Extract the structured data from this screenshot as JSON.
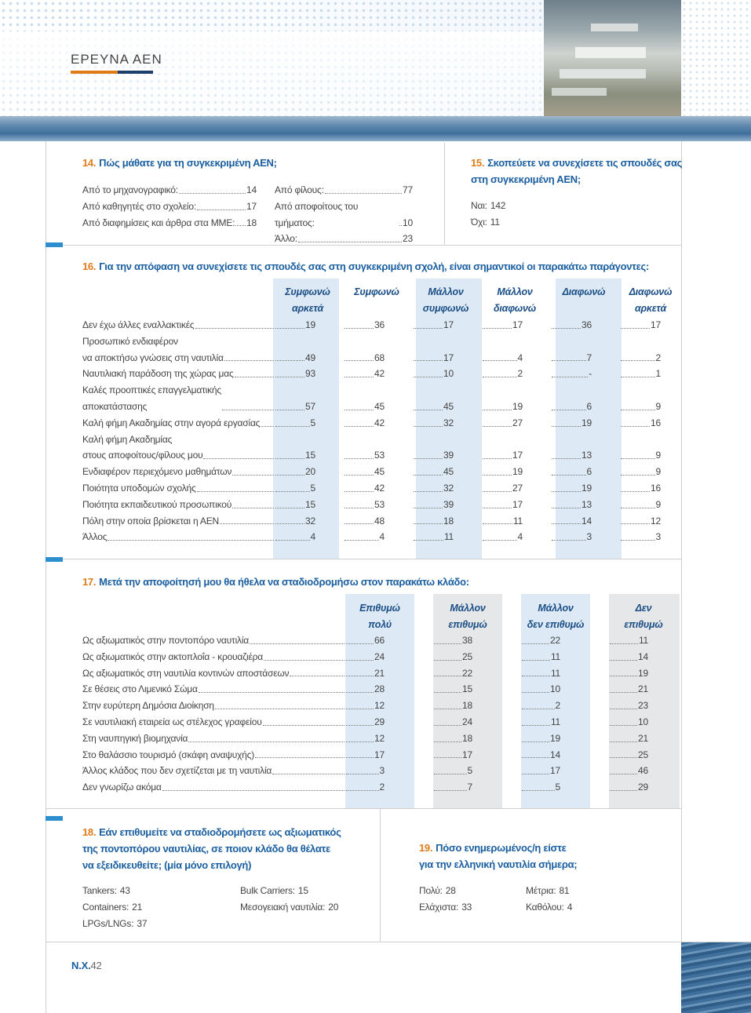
{
  "header": {
    "section": "ΕΡΕΥΝΑ ΑΕΝ"
  },
  "q14": {
    "number": "14.",
    "title": "Πώς μάθατε για τη συγκεκριμένη ΑΕΝ;",
    "columns": [
      [
        {
          "label": "Από το μηχανογραφικό:",
          "value": 14
        },
        {
          "label": "Από καθηγητές στο σχολείο:",
          "value": 17
        },
        {
          "label": "Από διαφημίσεις και άρθρα στα ΜΜΕ:",
          "value": 18
        }
      ],
      [
        {
          "label": "Από φίλους:",
          "value": 77
        },
        {
          "label": "Από αποφοίτους του τμήματος:",
          "value": 10
        },
        {
          "label": "Άλλο:",
          "value": 23
        }
      ]
    ]
  },
  "q15": {
    "number": "15.",
    "title": "Σκοπεύετε να συνεχίσετε τις σπουδές σας\nστη συγκεκριμένη ΑΕΝ;",
    "items": [
      {
        "label": "Ναι:",
        "value": 142
      },
      {
        "label": "Όχι:",
        "value": 11
      }
    ]
  },
  "q16": {
    "number": "16.",
    "title": "Για την  απόφαση να συνεχίσετε τις σπουδές σας στη συγκεκριμένη σχολή, είναι σημαντικοί οι παρακάτω παράγοντες:",
    "columns": [
      "Συμφωνώ\nαρκετά",
      "Συμφωνώ",
      "Μάλλον\nσυμφωνώ",
      "Μάλλον\nδιαφωνώ",
      "Διαφωνώ",
      "Διαφωνώ\nαρκετά"
    ],
    "rows": [
      {
        "label": "Δεν έχω άλλες εναλλακτικές",
        "values": [
          19,
          36,
          17,
          17,
          36,
          17
        ]
      },
      {
        "label": "Προσωπικό ενδιαφέρον\nνα αποκτήσω γνώσεις στη ναυτιλία",
        "values": [
          49,
          68,
          17,
          4,
          7,
          2
        ]
      },
      {
        "label": "Ναυτιλιακή παράδοση της χώρας μας",
        "values": [
          93,
          42,
          10,
          2,
          "-",
          1
        ]
      },
      {
        "label": "Καλές προοπτικές επαγγελματικής\nαποκατάστασης",
        "values": [
          57,
          45,
          45,
          19,
          6,
          9
        ]
      },
      {
        "label": "Καλή φήμη Ακαδημίας στην αγορά εργασίας",
        "values": [
          5,
          42,
          32,
          27,
          19,
          16
        ]
      },
      {
        "label": "Καλή φήμη Ακαδημίας\nστους αποφοίτους/φίλους μου",
        "values": [
          15,
          53,
          39,
          17,
          13,
          9
        ]
      },
      {
        "label": "Ενδιαφέρον περιεχόμενο μαθημάτων",
        "values": [
          20,
          45,
          45,
          19,
          6,
          9
        ]
      },
      {
        "label": "Ποιότητα υποδομών σχολής",
        "values": [
          5,
          42,
          32,
          27,
          19,
          16
        ]
      },
      {
        "label": "Ποιότητα εκπαιδευτικού προσωπικού",
        "values": [
          15,
          53,
          39,
          17,
          13,
          9
        ]
      },
      {
        "label": "Πόλη στην οποία βρίσκεται η ΑΕΝ",
        "values": [
          32,
          48,
          18,
          11,
          14,
          12
        ]
      },
      {
        "label": "Άλλος",
        "values": [
          4,
          4,
          11,
          4,
          3,
          3
        ]
      }
    ]
  },
  "q17": {
    "number": "17.",
    "title": "Μετά την αποφοίτησή μου θα ήθελα να σταδιοδρομήσω στον παρακάτω κλάδο:",
    "columns": [
      "Επιθυμώ\nπολύ",
      "Μάλλον\nεπιθυμώ",
      "Μάλλον\nδεν επιθυμώ",
      "Δεν\nεπιθυμώ"
    ],
    "rows": [
      {
        "label": "Ως αξιωματικός στην ποντοπόρο ναυτιλία",
        "values": [
          66,
          38,
          22,
          11
        ]
      },
      {
        "label": "Ως αξιωματικός στην ακτοπλοΐα - κρουαζιέρα",
        "values": [
          24,
          25,
          11,
          14
        ]
      },
      {
        "label": "Ως αξιωματικός στη ναυτιλία κοντινών αποστάσεων",
        "values": [
          21,
          22,
          11,
          19
        ]
      },
      {
        "label": "Σε θέσεις στο Λιμενικό Σώμα",
        "values": [
          28,
          15,
          10,
          21
        ]
      },
      {
        "label": "Στην ευρύτερη Δημόσια Διοίκηση",
        "values": [
          12,
          18,
          2,
          23
        ]
      },
      {
        "label": "Σε ναυτιλιακή εταιρεία ως στέλεχος γραφείου",
        "values": [
          29,
          24,
          11,
          10
        ]
      },
      {
        "label": "Στη ναυπηγική βιομηχανία",
        "values": [
          12,
          18,
          19,
          21
        ]
      },
      {
        "label": "Στο θαλάσσιο τουρισμό (σκάφη αναψυχής)",
        "values": [
          17,
          17,
          14,
          25
        ]
      },
      {
        "label": "Άλλος κλάδος που δεν σχετίζεται με τη ναυτιλία",
        "values": [
          3,
          5,
          17,
          46
        ]
      },
      {
        "label": "Δεν γνωρίζω ακόμα",
        "values": [
          2,
          7,
          5,
          29
        ]
      }
    ]
  },
  "q18": {
    "number": "18.",
    "title": "Εάν επιθυμείτε να σταδιοδρομήσετε ως αξιωματικός\nτης ποντοπόρου ναυτιλίας, σε ποιον κλάδο θα θέλατε\nνα εξειδικευθείτε; (μία μόνο επιλογή)",
    "columns": [
      [
        {
          "label": "Tankers:",
          "value": 43
        },
        {
          "label": "Containers:",
          "value": 21
        },
        {
          "label": "LPGs/LNGs:",
          "value": 37
        }
      ],
      [
        {
          "label": "Bulk Carriers:",
          "value": 15
        },
        {
          "label": "Μεσογειακή ναυτιλία:",
          "value": 20
        }
      ]
    ]
  },
  "q19": {
    "number": "19.",
    "title": "Πόσο ενημερωμένος/η είστε\nγια την ελληνική ναυτιλία σήμερα;",
    "columns": [
      [
        {
          "label": "Πολύ:",
          "value": 28
        },
        {
          "label": "Ελάχιστα:",
          "value": 33
        }
      ],
      [
        {
          "label": "Μέτρια:",
          "value": 81
        },
        {
          "label": "Καθόλου:",
          "value": 4
        }
      ]
    ]
  },
  "footer": {
    "prefix": "Ν.Χ.",
    "page": 42
  }
}
